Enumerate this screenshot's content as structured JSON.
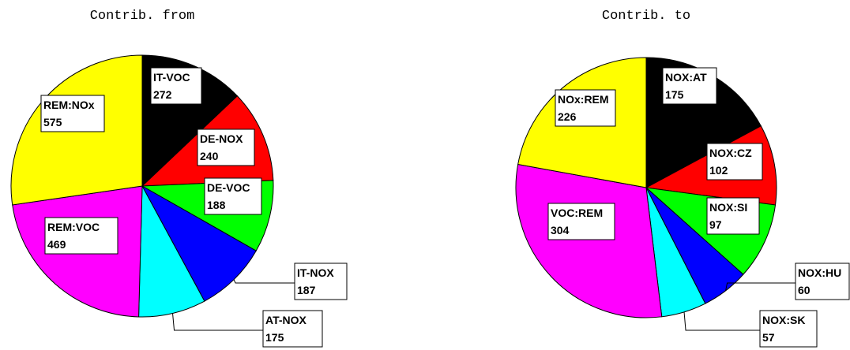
{
  "chart_data": [
    {
      "type": "pie",
      "title": "Contrib. from",
      "categories": [
        "IT-VOC",
        "DE-NOX",
        "DE-VOC",
        "IT-NOX",
        "AT-NOX",
        "REM:VOC",
        "REM:NOx"
      ],
      "values": [
        272,
        240,
        188,
        187,
        175,
        469,
        575
      ],
      "colors": [
        "#000000",
        "#ff0000",
        "#00ff00",
        "#0000ff",
        "#00ffff",
        "#ff00ff",
        "#ffff00"
      ]
    },
    {
      "type": "pie",
      "title": "Contrib. to",
      "categories": [
        "NOX:AT",
        "NOX:CZ",
        "NOX:SI",
        "NOX:HU",
        "NOX:SK",
        "VOC:REM",
        "NOx:REM"
      ],
      "values": [
        175,
        102,
        97,
        60,
        57,
        304,
        226
      ],
      "colors": [
        "#000000",
        "#ff0000",
        "#00ff00",
        "#0000ff",
        "#00ffff",
        "#ff00ff",
        "#ffff00"
      ]
    }
  ]
}
